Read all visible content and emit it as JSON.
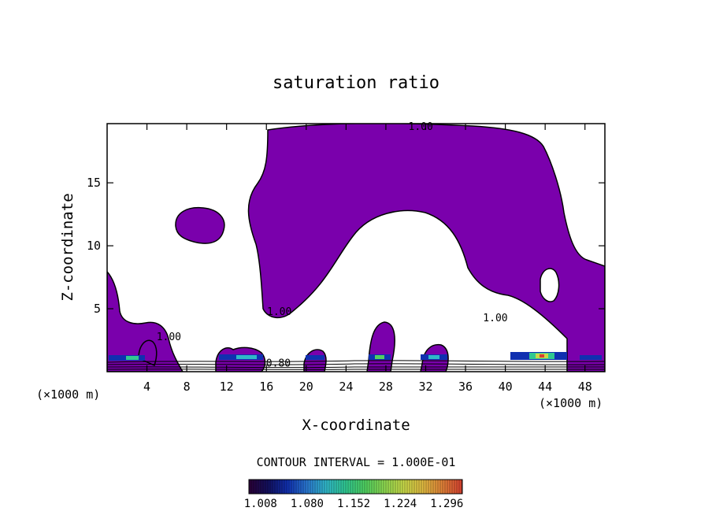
{
  "chart_data": {
    "type": "contour",
    "title": "saturation ratio",
    "xlabel": "X-coordinate",
    "ylabel": "Z-coordinate",
    "x_unit": "(×1000 m)",
    "xlim": [
      0,
      50
    ],
    "ylim": [
      0,
      19.7
    ],
    "x_ticks": [
      4,
      8,
      12,
      16,
      20,
      24,
      28,
      32,
      36,
      40,
      44,
      48
    ],
    "y_ticks": [
      5,
      10,
      15
    ],
    "contour_labels": [
      {
        "text": "1.00",
        "x": 31.5,
        "y": 19.2
      },
      {
        "text": "1.00",
        "x": 17.3,
        "y": 4.5
      },
      {
        "text": "1.00",
        "x": 39.0,
        "y": 4.0
      },
      {
        "text": "1.00",
        "x": 6.2,
        "y": 2.5
      },
      {
        "text": "0.80",
        "x": 17.2,
        "y": 0.4
      }
    ],
    "contour_interval_text": "CONTOUR INTERVAL = 1.000E-01",
    "colorbar": {
      "tick_labels": [
        "1.008",
        "1.080",
        "1.152",
        "1.224",
        "1.296"
      ],
      "range": [
        0.99,
        1.32
      ]
    },
    "colors": {
      "saturated_fill": "#7a00ac",
      "background": "#ffffff",
      "colorbar_stops": [
        "#2a0036",
        "#12105e",
        "#1030b0",
        "#2a78d0",
        "#30b8c8",
        "#30c890",
        "#50d060",
        "#8ed850",
        "#c8d848",
        "#e0b840",
        "#e08038",
        "#d84030"
      ]
    }
  }
}
